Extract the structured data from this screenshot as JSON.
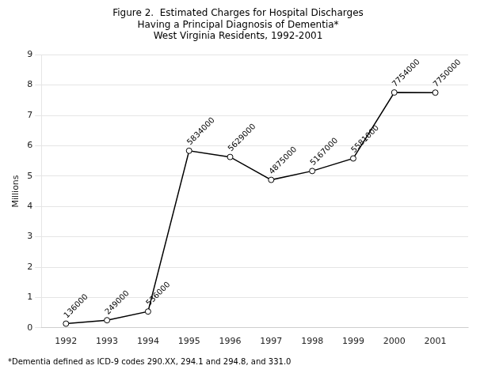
{
  "chart_data": {
    "type": "line",
    "title": [
      "Figure 2.  Estimated Charges for Hospital Discharges",
      "Having a Principal Diagnosis of Dementia*",
      "West Virginia Residents, 1992-2001"
    ],
    "annotations": [
      "*Dementia defined as ICD-9 codes 290.XX, 294.1 and 294.8, and 331.0"
    ],
    "ylabel": "Millions",
    "x": [
      1992,
      1993,
      1994,
      1995,
      1996,
      1997,
      1998,
      1999,
      2000,
      2001
    ],
    "values": [
      0.136,
      0.249,
      0.536,
      5.834,
      5.629,
      4.875,
      5.167,
      5.581,
      7.754,
      7.75
    ],
    "value_labels": [
      "136000",
      "249000",
      "536000",
      "5834000",
      "5629000",
      "4875000",
      "5167000",
      "5581000",
      "7754000",
      "7750000"
    ],
    "data_labels": true,
    "xlim": [
      1991.4,
      2001.8
    ],
    "xticks": [
      1992,
      1993,
      1994,
      1995,
      1996,
      1997,
      1998,
      1999,
      2000,
      2001
    ],
    "ylim": [
      0,
      9
    ],
    "yticks": [
      0,
      1,
      2,
      3,
      4,
      5,
      6,
      7,
      8,
      9
    ],
    "grid": "y",
    "color": "#000000",
    "marker": "circle"
  }
}
